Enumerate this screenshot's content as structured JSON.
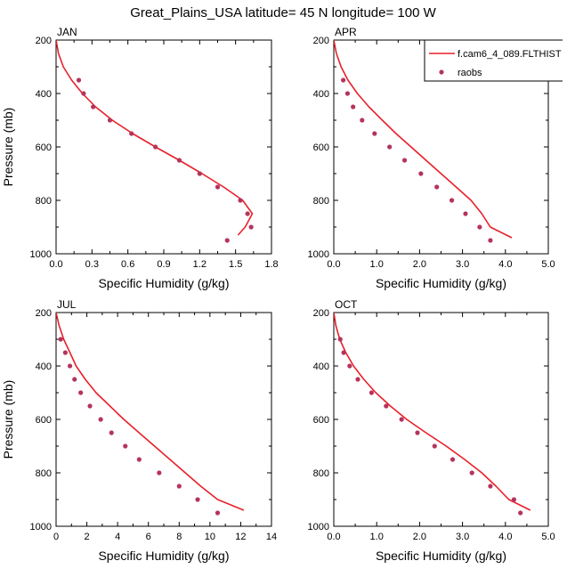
{
  "figure": {
    "title": "Great_Plains_USA  latitude= 45 N longitude= 100 W"
  },
  "legend": {
    "entries": [
      {
        "label": "f.cam6_4_089.FLTHIST",
        "kind": "line",
        "color": "#e8202a"
      },
      {
        "label": "raobs",
        "kind": "marker",
        "color": "#b5345c"
      }
    ]
  },
  "colors": {
    "model": "#e8202a",
    "obs": "#b5345c",
    "axis": "#000000"
  },
  "chart_data": [
    {
      "type": "line",
      "panel": "JAN",
      "xlabel": "Specific Humidity (g/kg)",
      "ylabel": "Pressure (mb)",
      "xlim": [
        0.0,
        1.8
      ],
      "ylim": [
        1000,
        200
      ],
      "y_reversed": true,
      "xticks": [
        "0.0",
        "0.3",
        "0.6",
        "0.9",
        "1.2",
        "1.5",
        "1.8"
      ],
      "yticks": [
        "200",
        "400",
        "600",
        "800",
        "1000"
      ],
      "series": [
        {
          "kind": "line",
          "color": "#e8202a",
          "points": [
            [
              0.0,
              200
            ],
            [
              0.02,
              250
            ],
            [
              0.06,
              300
            ],
            [
              0.13,
              350
            ],
            [
              0.22,
              400
            ],
            [
              0.33,
              450
            ],
            [
              0.47,
              500
            ],
            [
              0.64,
              550
            ],
            [
              0.83,
              600
            ],
            [
              1.03,
              650
            ],
            [
              1.22,
              700
            ],
            [
              1.4,
              750
            ],
            [
              1.56,
              800
            ],
            [
              1.64,
              850
            ],
            [
              1.58,
              900
            ],
            [
              1.52,
              930
            ]
          ]
        },
        {
          "kind": "scatter",
          "color": "#b5345c",
          "points": [
            [
              0.19,
              350
            ],
            [
              0.23,
              400
            ],
            [
              0.31,
              450
            ],
            [
              0.45,
              500
            ],
            [
              0.63,
              550
            ],
            [
              0.83,
              600
            ],
            [
              1.03,
              650
            ],
            [
              1.2,
              700
            ],
            [
              1.35,
              750
            ],
            [
              1.54,
              800
            ],
            [
              1.6,
              850
            ],
            [
              1.63,
              900
            ],
            [
              1.43,
              950
            ]
          ]
        }
      ]
    },
    {
      "type": "line",
      "panel": "APR",
      "xlabel": "Specific Humidity (g/kg)",
      "ylabel": "Pressure (mb)",
      "xlim": [
        0.0,
        5.0
      ],
      "ylim": [
        1000,
        200
      ],
      "y_reversed": true,
      "xticks": [
        "0.0",
        "1.0",
        "2.0",
        "3.0",
        "4.0",
        "5.0"
      ],
      "yticks": [
        "200",
        "400",
        "600",
        "800",
        "1000"
      ],
      "series": [
        {
          "kind": "line",
          "color": "#e8202a",
          "points": [
            [
              0.0,
              200
            ],
            [
              0.06,
              250
            ],
            [
              0.17,
              300
            ],
            [
              0.33,
              350
            ],
            [
              0.55,
              400
            ],
            [
              0.82,
              450
            ],
            [
              1.13,
              500
            ],
            [
              1.45,
              550
            ],
            [
              1.8,
              600
            ],
            [
              2.15,
              650
            ],
            [
              2.5,
              700
            ],
            [
              2.85,
              750
            ],
            [
              3.2,
              800
            ],
            [
              3.45,
              850
            ],
            [
              3.65,
              900
            ],
            [
              4.15,
              940
            ]
          ]
        },
        {
          "kind": "scatter",
          "color": "#b5345c",
          "points": [
            [
              0.22,
              350
            ],
            [
              0.32,
              400
            ],
            [
              0.45,
              450
            ],
            [
              0.66,
              500
            ],
            [
              0.95,
              550
            ],
            [
              1.3,
              600
            ],
            [
              1.65,
              650
            ],
            [
              2.03,
              700
            ],
            [
              2.4,
              750
            ],
            [
              2.75,
              800
            ],
            [
              3.07,
              850
            ],
            [
              3.4,
              900
            ],
            [
              3.65,
              950
            ]
          ]
        }
      ]
    },
    {
      "type": "line",
      "panel": "JUL",
      "xlabel": "Specific Humidity (g/kg)",
      "ylabel": "Pressure (mb)",
      "xlim": [
        0,
        14
      ],
      "ylim": [
        1000,
        200
      ],
      "y_reversed": true,
      "xticks": [
        "0",
        "2",
        "4",
        "6",
        "8",
        "10",
        "12",
        "14"
      ],
      "yticks": [
        "200",
        "400",
        "600",
        "800",
        "1000"
      ],
      "series": [
        {
          "kind": "line",
          "color": "#e8202a",
          "points": [
            [
              0.0,
              200
            ],
            [
              0.2,
              250
            ],
            [
              0.5,
              300
            ],
            [
              0.9,
              350
            ],
            [
              1.3,
              400
            ],
            [
              1.9,
              450
            ],
            [
              2.6,
              500
            ],
            [
              3.5,
              550
            ],
            [
              4.4,
              600
            ],
            [
              5.4,
              650
            ],
            [
              6.4,
              700
            ],
            [
              7.4,
              750
            ],
            [
              8.4,
              800
            ],
            [
              9.4,
              850
            ],
            [
              10.5,
              900
            ],
            [
              12.2,
              940
            ]
          ]
        },
        {
          "kind": "scatter",
          "color": "#b5345c",
          "points": [
            [
              0.3,
              300
            ],
            [
              0.6,
              350
            ],
            [
              0.9,
              400
            ],
            [
              1.2,
              450
            ],
            [
              1.6,
              500
            ],
            [
              2.2,
              550
            ],
            [
              2.9,
              600
            ],
            [
              3.6,
              650
            ],
            [
              4.5,
              700
            ],
            [
              5.4,
              750
            ],
            [
              6.7,
              800
            ],
            [
              8.0,
              850
            ],
            [
              9.2,
              900
            ],
            [
              10.5,
              950
            ]
          ]
        }
      ]
    },
    {
      "type": "line",
      "panel": "OCT",
      "xlabel": "Specific Humidity (g/kg)",
      "ylabel": "Pressure (mb)",
      "xlim": [
        0.0,
        5.0
      ],
      "ylim": [
        1000,
        200
      ],
      "y_reversed": true,
      "xticks": [
        "0.0",
        "1.0",
        "2.0",
        "3.0",
        "4.0",
        "5.0"
      ],
      "yticks": [
        "200",
        "400",
        "600",
        "800",
        "1000"
      ],
      "series": [
        {
          "kind": "line",
          "color": "#e8202a",
          "points": [
            [
              0.0,
              200
            ],
            [
              0.05,
              250
            ],
            [
              0.14,
              300
            ],
            [
              0.28,
              350
            ],
            [
              0.46,
              400
            ],
            [
              0.7,
              450
            ],
            [
              0.98,
              500
            ],
            [
              1.32,
              550
            ],
            [
              1.7,
              600
            ],
            [
              2.15,
              650
            ],
            [
              2.62,
              700
            ],
            [
              3.05,
              750
            ],
            [
              3.45,
              800
            ],
            [
              3.78,
              850
            ],
            [
              4.08,
              900
            ],
            [
              4.58,
              940
            ]
          ]
        },
        {
          "kind": "scatter",
          "color": "#b5345c",
          "points": [
            [
              0.15,
              300
            ],
            [
              0.23,
              350
            ],
            [
              0.37,
              400
            ],
            [
              0.56,
              450
            ],
            [
              0.88,
              500
            ],
            [
              1.22,
              550
            ],
            [
              1.58,
              600
            ],
            [
              1.95,
              650
            ],
            [
              2.35,
              700
            ],
            [
              2.77,
              750
            ],
            [
              3.22,
              800
            ],
            [
              3.65,
              850
            ],
            [
              4.2,
              900
            ],
            [
              4.35,
              950
            ]
          ]
        }
      ]
    }
  ]
}
